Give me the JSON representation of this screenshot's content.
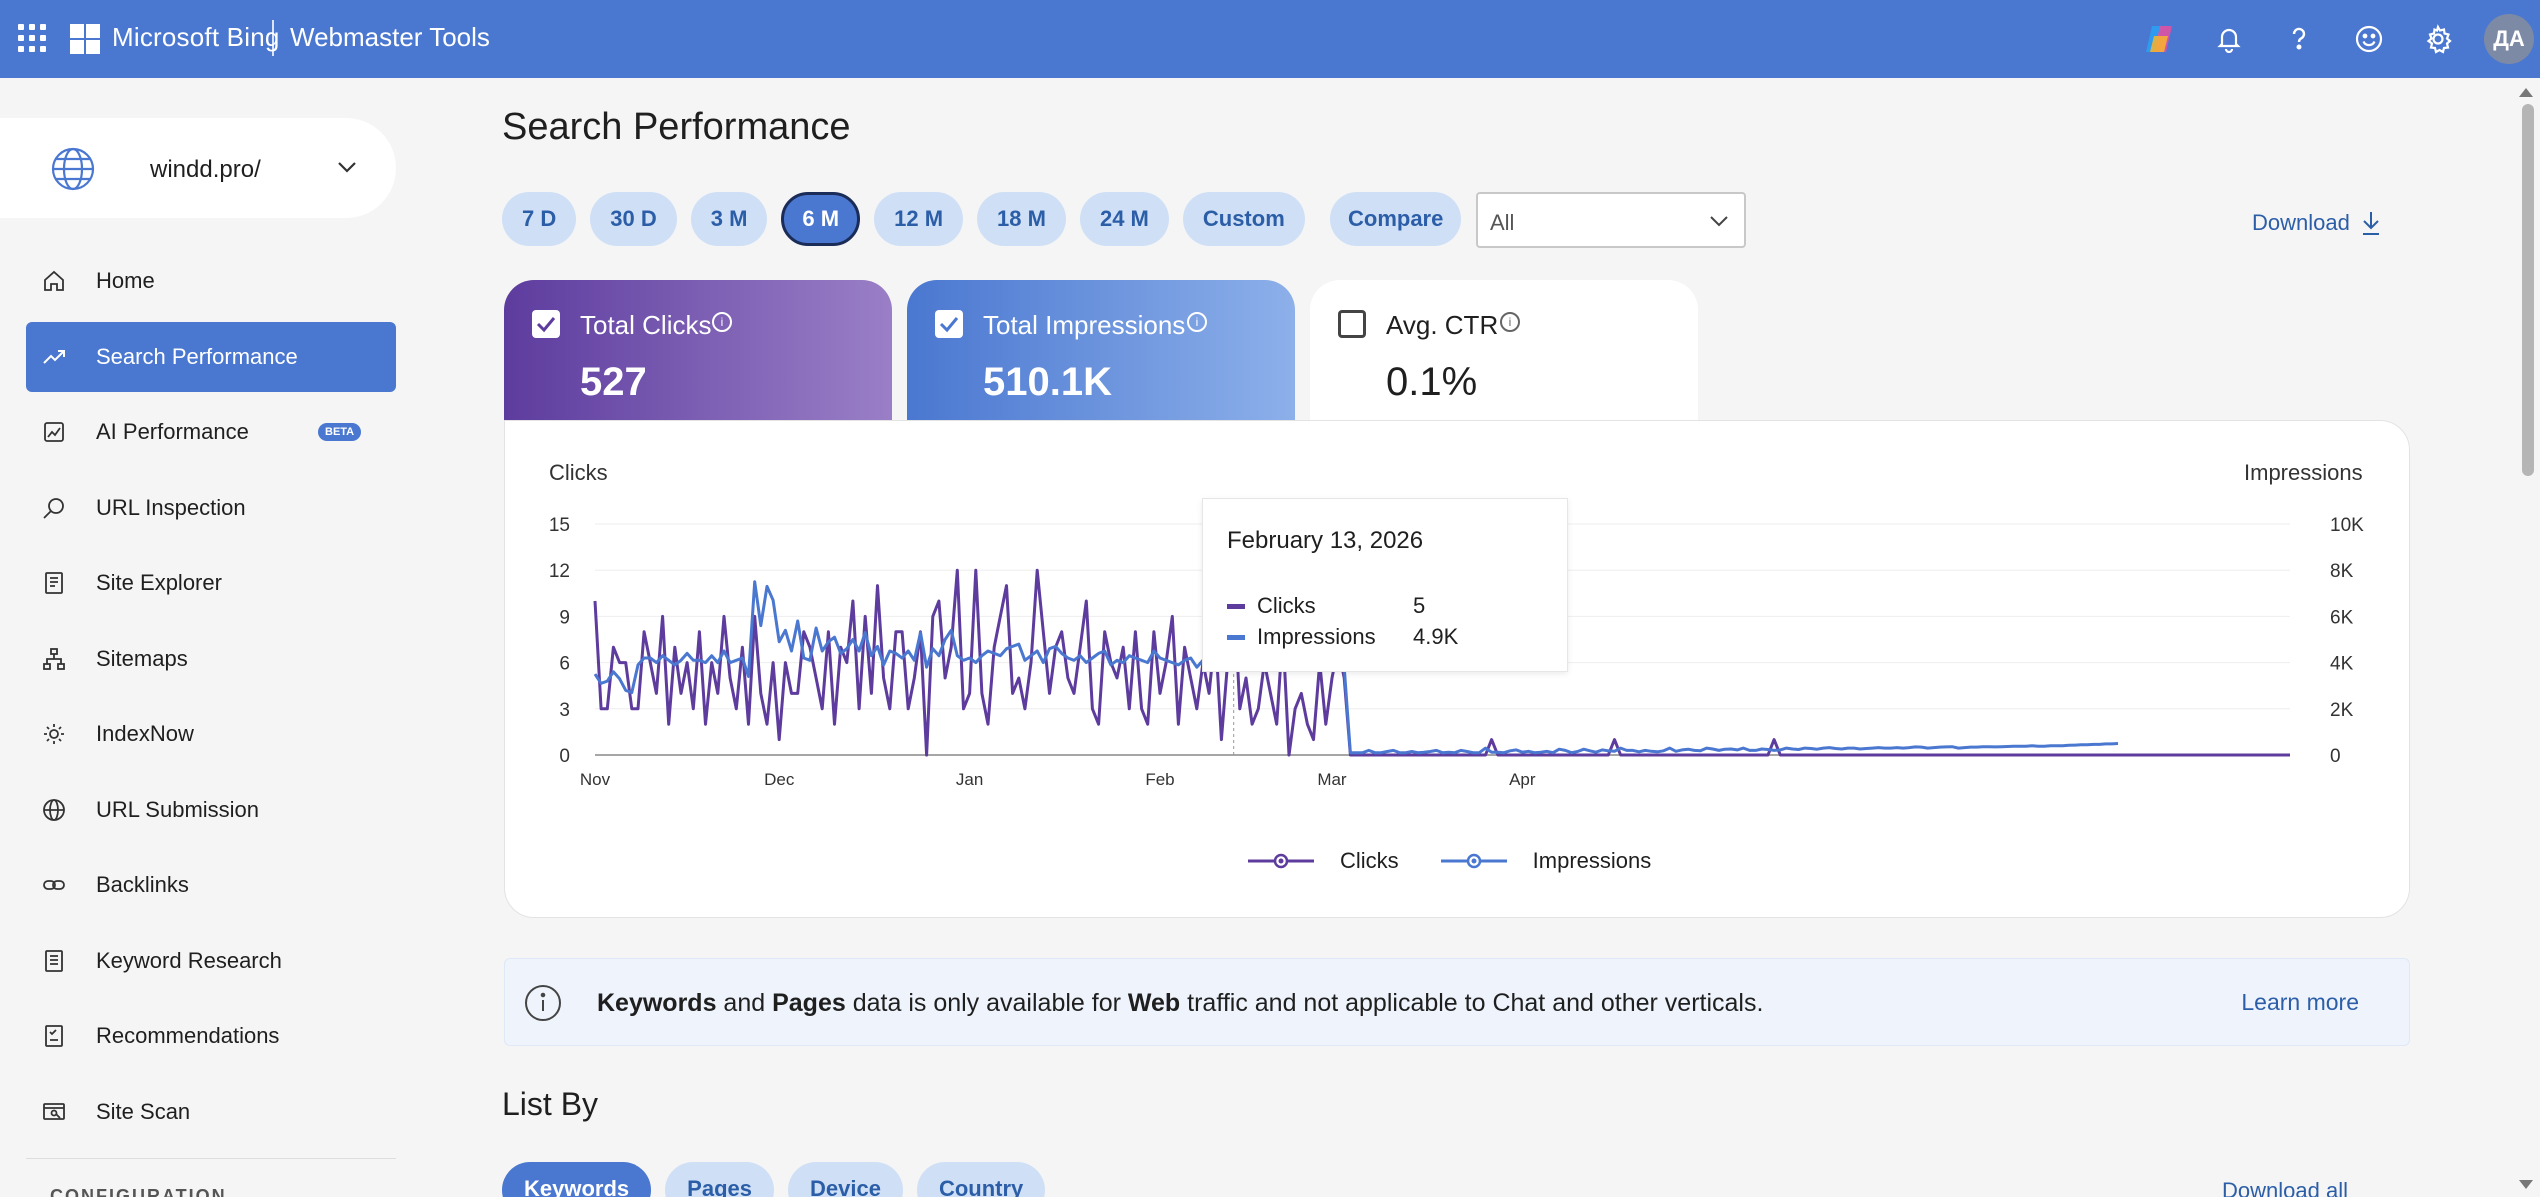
{
  "header": {
    "brand": "Microsoft Bing",
    "product": "Webmaster Tools",
    "avatar_initials": "ДА",
    "icons": [
      "copilot-icon",
      "bell-icon",
      "help-icon",
      "feedback-icon",
      "gear-icon"
    ]
  },
  "site": {
    "name": "windd.pro/"
  },
  "sidebar": {
    "items": [
      {
        "label": "Home",
        "icon": "home-icon"
      },
      {
        "label": "Search Performance",
        "icon": "trend-icon",
        "active": true
      },
      {
        "label": "AI Performance",
        "icon": "ai-performance-icon",
        "badge": "BETA"
      },
      {
        "label": "URL Inspection",
        "icon": "search-icon"
      },
      {
        "label": "Site Explorer",
        "icon": "site-explorer-icon"
      },
      {
        "label": "Sitemaps",
        "icon": "sitemap-icon"
      },
      {
        "label": "IndexNow",
        "icon": "indexnow-icon"
      },
      {
        "label": "URL Submission",
        "icon": "globe-icon"
      },
      {
        "label": "Backlinks",
        "icon": "link-icon"
      },
      {
        "label": "Keyword Research",
        "icon": "keyword-icon"
      },
      {
        "label": "Recommendations",
        "icon": "recommendations-icon"
      },
      {
        "label": "Site Scan",
        "icon": "site-scan-icon"
      }
    ],
    "section_label": "CONFIGURATION"
  },
  "page": {
    "title": "Search Performance",
    "ranges": [
      "7 D",
      "30 D",
      "3 M",
      "6 M",
      "12 M",
      "18 M",
      "24 M",
      "Custom"
    ],
    "selected_range": "6 M",
    "compare_label": "Compare",
    "filter_value": "All",
    "download_label": "Download"
  },
  "metrics": {
    "clicks": {
      "label": "Total Clicks",
      "value": "527",
      "checked": true,
      "color": "#5d3c9e"
    },
    "impressions": {
      "label": "Total Impressions",
      "value": "510.1K",
      "checked": true,
      "color": "#4a77d0"
    },
    "ctr": {
      "label": "Avg. CTR",
      "value": "0.1%",
      "checked": false
    }
  },
  "chart_labels": {
    "left_axis_title": "Clicks",
    "right_axis_title": "Impressions"
  },
  "tooltip": {
    "date": "February 13, 2026",
    "clicks_label": "Clicks",
    "clicks_value": "5",
    "impressions_label": "Impressions",
    "impressions_value": "4.9K"
  },
  "legend": {
    "clicks": "Clicks",
    "impressions": "Impressions"
  },
  "chart_data": {
    "type": "line",
    "x_ticks": [
      "Nov",
      "Dec",
      "Jan",
      "Feb",
      "Mar",
      "Apr"
    ],
    "y_left": {
      "label": "Clicks",
      "ticks": [
        0,
        3,
        6,
        9,
        12,
        15
      ],
      "range": [
        0,
        15
      ]
    },
    "y_right": {
      "label": "Impressions",
      "ticks": [
        "0",
        "2K",
        "4K",
        "6K",
        "8K",
        "10K"
      ],
      "range": [
        0,
        10000
      ]
    },
    "grid": true,
    "legend_position": "bottom-center",
    "series": [
      {
        "name": "Clicks",
        "color": "#5d3c9e",
        "values": [
          10,
          3,
          3,
          7,
          6,
          6,
          3,
          3,
          8,
          6,
          4,
          9,
          2,
          7,
          4,
          6,
          3,
          8,
          2,
          6,
          4,
          9,
          5,
          3,
          7,
          2,
          9,
          4,
          2,
          6,
          1,
          6,
          4,
          4,
          8,
          7,
          5,
          3,
          8,
          2,
          7,
          6,
          10,
          3,
          9,
          4,
          11,
          5,
          3,
          8,
          8,
          3,
          5,
          8,
          0,
          9,
          10,
          5,
          7,
          12,
          3,
          4,
          12,
          4,
          2,
          7,
          9,
          11,
          4,
          5,
          3,
          6,
          12,
          8,
          4,
          7,
          8,
          5,
          4,
          7,
          10,
          3,
          2,
          8,
          6,
          5,
          7,
          3,
          8,
          3,
          2,
          8,
          4,
          6,
          9,
          2,
          7,
          5,
          3,
          6,
          4,
          8,
          1,
          6,
          11,
          3,
          5,
          2,
          3,
          6,
          4,
          2,
          8,
          0,
          3,
          4,
          2,
          1,
          6,
          2,
          5,
          7,
          5,
          0,
          0,
          0,
          0,
          0,
          0,
          0,
          0,
          0,
          0,
          0,
          0,
          0,
          0,
          0,
          0,
          0,
          0,
          0,
          0,
          0,
          0,
          0,
          1,
          0,
          0,
          0,
          0,
          0,
          0,
          0,
          0,
          0,
          0,
          0,
          0,
          0,
          0,
          0,
          0,
          0,
          0,
          0,
          1,
          0,
          0,
          0,
          0,
          0,
          0,
          0,
          0,
          0,
          0,
          0,
          0,
          0,
          0,
          0,
          0,
          0,
          0,
          0,
          0,
          0,
          0,
          0,
          0,
          0,
          1,
          0,
          0,
          0,
          0,
          0,
          0,
          0,
          0,
          0,
          0,
          0,
          0,
          0,
          0,
          0,
          0,
          0,
          0,
          0,
          0,
          0,
          0,
          0,
          0,
          0,
          0,
          0,
          0,
          0,
          0,
          0,
          0,
          0,
          0,
          0,
          0,
          0,
          0,
          0,
          0,
          0,
          0,
          0,
          0,
          0,
          0,
          0,
          0,
          0,
          0,
          0,
          0,
          0,
          0,
          0,
          0,
          0,
          0,
          0,
          0,
          0,
          0,
          0,
          0,
          0,
          0,
          0,
          0,
          0,
          0,
          0,
          0,
          0,
          0,
          0,
          0,
          0,
          0,
          0,
          0,
          0,
          0,
          0,
          0
        ]
      },
      {
        "name": "Impressions",
        "color": "#4a77d0",
        "values": [
          3500,
          3100,
          3200,
          3600,
          3300,
          2800,
          2700,
          3900,
          4200,
          4200,
          4000,
          4300,
          4100,
          3900,
          4100,
          4400,
          4100,
          4100,
          4000,
          4300,
          4000,
          4500,
          4000,
          4100,
          4200,
          3400,
          7500,
          5600,
          7300,
          6700,
          4900,
          5400,
          4500,
          5800,
          4200,
          4100,
          5500,
          4500,
          4900,
          5100,
          4400,
          4600,
          5000,
          4500,
          5300,
          4300,
          4700,
          3900,
          4500,
          4400,
          4200,
          4500,
          4100,
          5300,
          3800,
          4600,
          4300,
          5000,
          5400,
          4300,
          4100,
          4200,
          4000,
          4300,
          4500,
          4400,
          4300,
          4600,
          4700,
          4800,
          4100,
          4300,
          4500,
          4000,
          4600,
          4700,
          4400,
          4200,
          4100,
          4300,
          4000,
          4200,
          4400,
          4500,
          3900,
          4100,
          4000,
          4300,
          4200,
          4100,
          4000,
          4500,
          4200,
          4100,
          4000,
          3900,
          4100,
          4200,
          3800,
          4100,
          4000,
          4200,
          4100,
          4300,
          4000,
          3900,
          4000,
          4200,
          4100,
          4000,
          4100,
          3900,
          4200,
          3900,
          4100,
          4300,
          4000,
          4200,
          3700,
          4100,
          4400,
          4900,
          3800,
          100,
          100,
          100,
          200,
          100,
          100,
          150,
          200,
          100,
          100,
          150,
          100,
          120,
          150,
          200,
          100,
          120,
          100,
          200,
          150,
          100,
          100,
          300,
          120,
          120,
          100,
          180,
          220,
          120,
          160,
          100,
          120,
          160,
          100,
          250,
          200,
          100,
          150,
          250,
          180,
          120,
          220,
          180,
          160,
          300,
          200,
          200,
          140,
          200,
          160,
          140,
          180,
          300,
          160,
          220,
          250,
          200,
          180,
          300,
          260,
          200,
          250,
          260,
          220,
          300,
          200,
          200,
          260,
          240,
          200,
          220,
          300,
          260,
          240,
          300,
          280,
          250,
          300,
          320,
          280,
          260,
          300,
          300,
          260,
          280,
          300,
          320,
          300,
          300,
          320,
          300,
          320,
          350,
          340,
          300,
          320,
          340,
          350,
          360,
          300,
          320,
          340,
          340,
          360,
          360,
          350,
          360,
          370,
          380,
          380,
          380,
          400,
          380,
          380,
          400,
          400,
          400,
          420,
          430,
          440,
          440,
          460,
          460,
          480,
          480,
          500
        ]
      }
    ]
  },
  "banner": {
    "w1": "Keywords",
    "t1": " and ",
    "w2": "Pages",
    "t2": " data is only available for ",
    "w3": "Web",
    "t3": " traffic and not applicable to Chat and other verticals.",
    "learn_more": "Learn more"
  },
  "list_by": {
    "title": "List By",
    "tabs": [
      "Keywords",
      "Pages",
      "Device",
      "Country"
    ],
    "selected": "Keywords",
    "download_all": "Download all"
  }
}
